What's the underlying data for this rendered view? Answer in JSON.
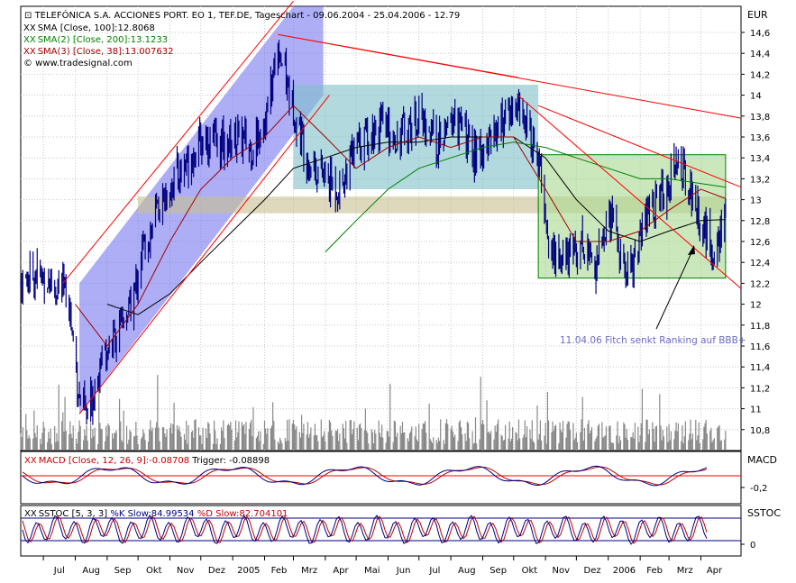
{
  "header": {
    "title": "TELEFÓNICA S.A. ACCIONES PORT. EO 1, TEF.DE, Tageschart - 09.06.2004 - 25.04.2006 - 12.79",
    "currency": "EUR",
    "copyright": "© www.tradesignal.com"
  },
  "legend": [
    {
      "marker": "XX",
      "text": "SMA [Close, 100]:12.8068",
      "color": "#000000"
    },
    {
      "marker": "XX",
      "text": "SMA(2) [Close, 200]:13.1233",
      "color": "#008000"
    },
    {
      "marker": "XX",
      "text": "SMA(3) [Close, 38]:13.007632",
      "color": "#a00000"
    }
  ],
  "annotation": {
    "text": "11.04.06 Fitch senkt Ranking auf BBB+",
    "color": "#6a6ac8"
  },
  "macd": {
    "label": "MACD",
    "legend_prefix": "MACD [Close, 12, 26, 9]:",
    "legend_value": "-0.08708",
    "legend_trigger": " Trigger: -0.08898",
    "tick": "-0,2"
  },
  "sstoc": {
    "label": "SSTOC",
    "legend_prefix": "SSTOC [5, 3, 3] ",
    "legend_k": "%K Slow:84.99534",
    "legend_d": " %D Slow:82.704101",
    "tick": "0"
  },
  "chart_data": {
    "type": "line",
    "title": "TELEFÓNICA S.A. ACCIONES PORT. EO 1, TEF.DE, Tageschart - 09.06.2004 - 25.04.2006 - 12.79",
    "ylim": [
      10.6,
      14.85
    ],
    "y_ticks": [
      10.8,
      11,
      11.2,
      11.4,
      11.6,
      11.8,
      12,
      12.2,
      12.4,
      12.6,
      12.8,
      13,
      13.2,
      13.4,
      13.6,
      13.8,
      14,
      14.2,
      14.4,
      14.6
    ],
    "y_tick_labels": [
      "10,8",
      "11",
      "11,2",
      "11,4",
      "11,6",
      "11,8",
      "12",
      "12,2",
      "12,4",
      "12,6",
      "12,8",
      "13",
      "13,2",
      "13,4",
      "13,6",
      "13,8",
      "14",
      "14,2",
      "14,4",
      "14,6"
    ],
    "x_tick_labels": [
      "Jul",
      "Aug",
      "Sep",
      "Okt",
      "Nov",
      "Dez",
      "2005",
      "Feb",
      "Mrz",
      "Apr",
      "Mai",
      "Jun",
      "Jul",
      "Aug",
      "Sep",
      "Okt",
      "Nov",
      "Dez",
      "2006",
      "Feb",
      "Mrz",
      "Apr"
    ],
    "grid": true,
    "price_path": [
      [
        "2004-06-09",
        12.2
      ],
      [
        "2004-06-25",
        12.3
      ],
      [
        "2004-07-10",
        12.2
      ],
      [
        "2004-07-25",
        12.1
      ],
      [
        "2004-08-05",
        11.1
      ],
      [
        "2004-08-13",
        10.9
      ],
      [
        "2004-08-25",
        11.5
      ],
      [
        "2004-09-10",
        11.7
      ],
      [
        "2004-09-25",
        12.0
      ],
      [
        "2004-10-05",
        12.5
      ],
      [
        "2004-10-20",
        12.9
      ],
      [
        "2004-11-05",
        13.2
      ],
      [
        "2004-11-20",
        13.4
      ],
      [
        "2004-12-05",
        13.6
      ],
      [
        "2004-12-20",
        13.5
      ],
      [
        "2005-01-05",
        13.6
      ],
      [
        "2005-01-20",
        13.5
      ],
      [
        "2005-02-05",
        13.9
      ],
      [
        "2005-02-14",
        14.5
      ],
      [
        "2005-02-28",
        13.9
      ],
      [
        "2005-03-15",
        13.4
      ],
      [
        "2005-04-01",
        13.2
      ],
      [
        "2005-04-15",
        13.1
      ],
      [
        "2005-05-01",
        13.5
      ],
      [
        "2005-05-20",
        13.7
      ],
      [
        "2005-06-10",
        13.6
      ],
      [
        "2005-07-01",
        13.8
      ],
      [
        "2005-07-20",
        13.5
      ],
      [
        "2005-08-05",
        13.8
      ],
      [
        "2005-08-25",
        13.4
      ],
      [
        "2005-09-15",
        13.7
      ],
      [
        "2005-10-03",
        13.9
      ],
      [
        "2005-10-15",
        13.7
      ],
      [
        "2005-10-28",
        13.2
      ],
      [
        "2005-11-05",
        12.5
      ],
      [
        "2005-11-20",
        12.4
      ],
      [
        "2005-12-05",
        12.6
      ],
      [
        "2005-12-20",
        12.4
      ],
      [
        "2006-01-05",
        12.9
      ],
      [
        "2006-01-15",
        12.3
      ],
      [
        "2006-01-25",
        12.4
      ],
      [
        "2006-02-10",
        12.9
      ],
      [
        "2006-02-25",
        13.1
      ],
      [
        "2006-03-10",
        13.4
      ],
      [
        "2006-03-25",
        13.0
      ],
      [
        "2006-04-11",
        12.5
      ],
      [
        "2006-04-25",
        12.8
      ]
    ],
    "sma100_path": [
      [
        "2004-09-01",
        12.0
      ],
      [
        "2004-10-01",
        11.9
      ],
      [
        "2004-11-01",
        12.1
      ],
      [
        "2004-12-01",
        12.4
      ],
      [
        "2005-01-01",
        12.7
      ],
      [
        "2005-02-01",
        13.0
      ],
      [
        "2005-03-01",
        13.3
      ],
      [
        "2005-04-01",
        13.4
      ],
      [
        "2005-05-01",
        13.5
      ],
      [
        "2005-06-01",
        13.55
      ],
      [
        "2005-07-01",
        13.55
      ],
      [
        "2005-08-01",
        13.6
      ],
      [
        "2005-09-01",
        13.6
      ],
      [
        "2005-10-01",
        13.6
      ],
      [
        "2005-11-01",
        13.4
      ],
      [
        "2005-12-01",
        13.0
      ],
      [
        "2006-01-01",
        12.7
      ],
      [
        "2006-02-01",
        12.6
      ],
      [
        "2006-03-01",
        12.7
      ],
      [
        "2006-04-01",
        12.8
      ],
      [
        "2006-04-25",
        12.81
      ]
    ],
    "sma200_path": [
      [
        "2005-04-01",
        12.5
      ],
      [
        "2005-05-01",
        12.8
      ],
      [
        "2005-06-01",
        13.1
      ],
      [
        "2005-07-01",
        13.3
      ],
      [
        "2005-08-01",
        13.4
      ],
      [
        "2005-09-01",
        13.5
      ],
      [
        "2005-10-01",
        13.55
      ],
      [
        "2005-11-01",
        13.5
      ],
      [
        "2005-12-01",
        13.4
      ],
      [
        "2006-01-01",
        13.3
      ],
      [
        "2006-02-01",
        13.2
      ],
      [
        "2006-03-01",
        13.2
      ],
      [
        "2006-04-25",
        13.12
      ]
    ],
    "sma38_path": [
      [
        "2004-08-01",
        12.0
      ],
      [
        "2004-09-01",
        11.6
      ],
      [
        "2004-10-01",
        12.0
      ],
      [
        "2004-11-01",
        12.6
      ],
      [
        "2004-12-01",
        13.1
      ],
      [
        "2005-01-01",
        13.4
      ],
      [
        "2005-02-01",
        13.6
      ],
      [
        "2005-03-01",
        13.9
      ],
      [
        "2005-04-01",
        13.6
      ],
      [
        "2005-05-01",
        13.3
      ],
      [
        "2005-06-01",
        13.5
      ],
      [
        "2005-07-01",
        13.6
      ],
      [
        "2005-08-01",
        13.5
      ],
      [
        "2005-09-01",
        13.6
      ],
      [
        "2005-10-01",
        13.6
      ],
      [
        "2005-11-01",
        13.1
      ],
      [
        "2005-12-01",
        12.6
      ],
      [
        "2006-01-01",
        12.6
      ],
      [
        "2006-02-01",
        12.7
      ],
      [
        "2006-03-01",
        12.9
      ],
      [
        "2006-04-01",
        13.1
      ],
      [
        "2006-04-25",
        13.01
      ]
    ],
    "rectangles": [
      {
        "name": "rising-channel-band",
        "color": "#6c6cf0"
      },
      {
        "name": "consolidation-box",
        "x": [
          "2005-03-01",
          "2005-10-25"
        ],
        "y": [
          13.1,
          14.1
        ],
        "color": "#7fbfc8"
      },
      {
        "name": "support-resistance-band",
        "x": [
          "2004-10-01",
          "2006-04-25"
        ],
        "y": [
          12.87,
          13.03
        ],
        "color": "#c8c090"
      },
      {
        "name": "trading-range-box",
        "x": [
          "2005-10-25",
          "2006-04-25"
        ],
        "y": [
          12.25,
          13.43
        ],
        "color": "#a8d890"
      }
    ],
    "trendlines": [
      {
        "name": "channel-lower",
        "from": [
          "2004-08-05",
          10.95
        ],
        "to": [
          "2005-04-05",
          14.0
        ]
      },
      {
        "name": "channel-upper",
        "from": [
          "2004-07-20",
          12.2
        ],
        "to": [
          "2005-03-01",
          14.9
        ]
      },
      {
        "name": "long-downtrend",
        "from": [
          "2005-02-14",
          14.58
        ],
        "to": [
          "2006-05-10",
          13.78
        ]
      },
      {
        "name": "mid-downtrend",
        "from": [
          "2005-02-14",
          14.58
        ],
        "to": [
          "2005-10-05",
          14.17
        ]
      },
      {
        "name": "steep-downtrend",
        "from": [
          "2005-10-05",
          14.0
        ],
        "to": [
          "2006-05-10",
          12.15
        ]
      },
      {
        "name": "upper-downtrend",
        "from": [
          "2005-10-25",
          13.9
        ],
        "to": [
          "2006-05-10",
          13.12
        ]
      }
    ]
  }
}
